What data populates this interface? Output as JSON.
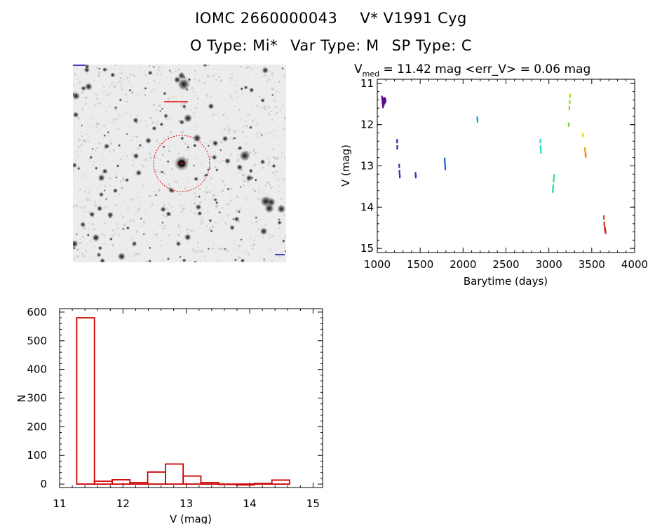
{
  "header": {
    "title_id": "IOMC 2660000043",
    "title_name": "V* V1991 Cyg",
    "otype": "O Type: Mi*",
    "vartype": "Var Type: M",
    "sptype": "SP Type: C"
  },
  "lightcurve_caption": {
    "prefix": "V",
    "sub": "med",
    "rest": " = 11.42 mag <err_V> = 0.06 mag"
  },
  "chart_data": [
    {
      "type": "scatter",
      "xlabel": "Barytime (days)",
      "ylabel": "V (mag)",
      "xlim": [
        1000,
        4000
      ],
      "ylim": [
        15.1,
        10.9
      ],
      "y_inverted": true,
      "xticks": [
        1000,
        1500,
        2000,
        2500,
        3000,
        3500,
        4000
      ],
      "yticks": [
        11,
        12,
        13,
        14,
        15
      ],
      "grid": false,
      "points": [
        {
          "x": 1055,
          "y": 11.35,
          "color": "#5a0a8c"
        },
        {
          "x": 1060,
          "y": 11.45,
          "color": "#5a0a8c"
        },
        {
          "x": 1065,
          "y": 11.55,
          "color": "#5a0a8c"
        },
        {
          "x": 1070,
          "y": 11.4,
          "color": "#5a0a8c"
        },
        {
          "x": 1075,
          "y": 11.5,
          "color": "#5a0a8c"
        },
        {
          "x": 1080,
          "y": 11.38,
          "color": "#5a0a8c"
        },
        {
          "x": 1085,
          "y": 11.45,
          "color": "#5a0a8c"
        },
        {
          "x": 1090,
          "y": 11.4,
          "color": "#5a0a8c"
        },
        {
          "x": 1095,
          "y": 11.42,
          "color": "#5a0a8c"
        },
        {
          "x": 1230,
          "y": 12.4,
          "color": "#4a1a9c"
        },
        {
          "x": 1232,
          "y": 12.55,
          "color": "#4a1a9c"
        },
        {
          "x": 1255,
          "y": 13.0,
          "color": "#3a2aaa"
        },
        {
          "x": 1258,
          "y": 13.15,
          "color": "#3a2aaa"
        },
        {
          "x": 1262,
          "y": 13.25,
          "color": "#3a2aaa"
        },
        {
          "x": 1445,
          "y": 13.2,
          "color": "#2a3ab5"
        },
        {
          "x": 1448,
          "y": 13.25,
          "color": "#2a3ab5"
        },
        {
          "x": 1785,
          "y": 12.85,
          "color": "#1560c8"
        },
        {
          "x": 1788,
          "y": 12.95,
          "color": "#1560c8"
        },
        {
          "x": 1792,
          "y": 13.05,
          "color": "#1560c8"
        },
        {
          "x": 2165,
          "y": 11.85,
          "color": "#18a8d8"
        },
        {
          "x": 2168,
          "y": 11.9,
          "color": "#18a8d8"
        },
        {
          "x": 2900,
          "y": 12.4,
          "color": "#20d8c8"
        },
        {
          "x": 2903,
          "y": 12.55,
          "color": "#20d8c8"
        },
        {
          "x": 2906,
          "y": 12.65,
          "color": "#20d8c8"
        },
        {
          "x": 3045,
          "y": 13.6,
          "color": "#20d0a0"
        },
        {
          "x": 3050,
          "y": 13.5,
          "color": "#28d890"
        },
        {
          "x": 3055,
          "y": 13.35,
          "color": "#30e080"
        },
        {
          "x": 3060,
          "y": 13.25,
          "color": "#38e070"
        },
        {
          "x": 3230,
          "y": 12.0,
          "color": "#5ed83a"
        },
        {
          "x": 3238,
          "y": 11.6,
          "color": "#7ed830"
        },
        {
          "x": 3242,
          "y": 11.45,
          "color": "#8ed828"
        },
        {
          "x": 3246,
          "y": 11.3,
          "color": "#a0e020"
        },
        {
          "x": 3395,
          "y": 12.25,
          "color": "#e8d818"
        },
        {
          "x": 3420,
          "y": 12.6,
          "color": "#f0a010"
        },
        {
          "x": 3425,
          "y": 12.7,
          "color": "#f09010"
        },
        {
          "x": 3430,
          "y": 12.75,
          "color": "#f08010"
        },
        {
          "x": 3640,
          "y": 14.25,
          "color": "#d84010"
        },
        {
          "x": 3645,
          "y": 14.4,
          "color": "#d83810"
        },
        {
          "x": 3650,
          "y": 14.5,
          "color": "#d83010"
        },
        {
          "x": 3655,
          "y": 14.55,
          "color": "#d02a10"
        },
        {
          "x": 3660,
          "y": 14.6,
          "color": "#c82810"
        }
      ]
    },
    {
      "type": "bar",
      "subtype": "histogram",
      "xlabel": "V (mag)",
      "ylabel": "N",
      "xlim": [
        11,
        15.15
      ],
      "ylim": [
        -12,
        612
      ],
      "xticks": [
        11,
        12,
        13,
        14,
        15
      ],
      "yticks": [
        0,
        100,
        200,
        300,
        400,
        500,
        600
      ],
      "bin_width": 0.28,
      "bin_left_edges": [
        11.27,
        11.55,
        11.83,
        12.11,
        12.39,
        12.67,
        12.95,
        13.23,
        13.51,
        13.79,
        14.07,
        14.35
      ],
      "values": [
        580,
        10,
        15,
        5,
        42,
        70,
        28,
        5,
        0,
        -3,
        2,
        14
      ],
      "color": "#cc0000",
      "grid": false
    }
  ]
}
